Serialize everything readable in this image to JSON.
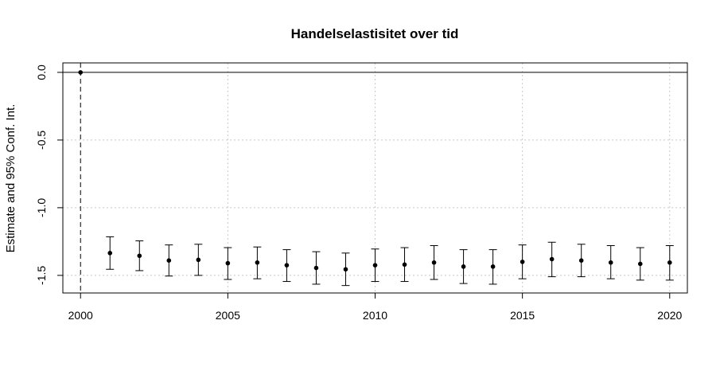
{
  "chart_data": {
    "type": "scatter",
    "title": "Handelselastisitet over tid",
    "xlabel": "",
    "ylabel": "Estimate and 95% Conf. Int.",
    "xlim": [
      1999.4,
      2020.6
    ],
    "ylim": [
      -1.63,
      0.07
    ],
    "x_ticks": [
      2000,
      2005,
      2010,
      2015,
      2020
    ],
    "x_tick_labels": [
      "2000",
      "2005",
      "2010",
      "2015",
      "2020"
    ],
    "y_ticks": [
      0.0,
      -0.5,
      -1.0,
      -1.5
    ],
    "y_tick_labels": [
      "0.0",
      "-0.5",
      "-1.0",
      "-1.5"
    ],
    "grid": true,
    "reference_line_y": 0,
    "reference_line_x": 2000,
    "series": [
      {
        "x": [
          2000,
          2001,
          2002,
          2003,
          2004,
          2005,
          2006,
          2007,
          2008,
          2009,
          2010,
          2011,
          2012,
          2013,
          2014,
          2015,
          2016,
          2017,
          2018,
          2019,
          2020
        ],
        "values": [
          0.0,
          -1.335,
          -1.355,
          -1.39,
          -1.385,
          -1.41,
          -1.405,
          -1.425,
          -1.445,
          -1.455,
          -1.425,
          -1.42,
          -1.405,
          -1.435,
          -1.435,
          -1.4,
          -1.38,
          -1.39,
          -1.405,
          -1.415,
          -1.405
        ],
        "lower": [
          0.0,
          -1.455,
          -1.465,
          -1.505,
          -1.5,
          -1.53,
          -1.525,
          -1.545,
          -1.565,
          -1.575,
          -1.545,
          -1.545,
          -1.53,
          -1.56,
          -1.565,
          -1.525,
          -1.51,
          -1.51,
          -1.525,
          -1.535,
          -1.535
        ],
        "upper": [
          0.0,
          -1.215,
          -1.245,
          -1.275,
          -1.27,
          -1.295,
          -1.29,
          -1.31,
          -1.325,
          -1.335,
          -1.305,
          -1.295,
          -1.28,
          -1.31,
          -1.31,
          -1.275,
          -1.255,
          -1.27,
          -1.28,
          -1.295,
          -1.28
        ]
      }
    ]
  }
}
